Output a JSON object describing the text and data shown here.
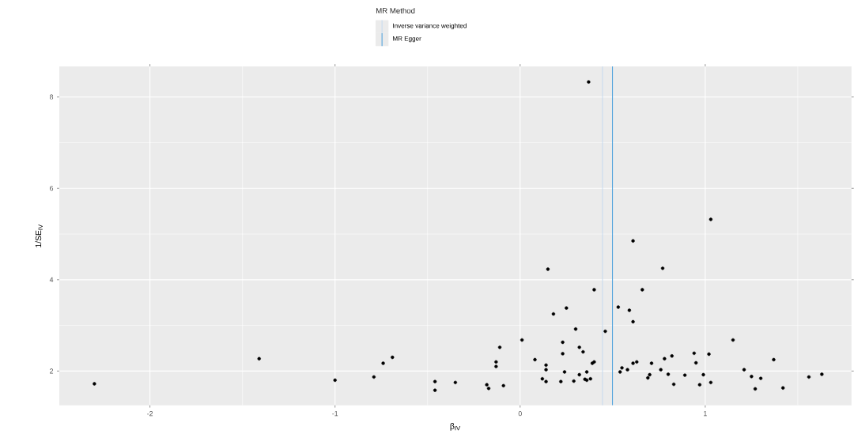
{
  "chart_data": {
    "type": "scatter",
    "xlabel": "β$_{IV}$",
    "ylabel": "1/SE$_{IV}$",
    "legend_title": "MR Method",
    "legend": "top",
    "grid": true,
    "marker": "circle",
    "color": "#000000",
    "xlim": [
      -2.49,
      1.79
    ],
    "ylim": [
      1.25,
      8.67
    ],
    "xticks": [
      -2,
      -1,
      0,
      1
    ],
    "yticks": [
      2,
      4,
      6,
      8
    ],
    "x": [
      -2.3,
      -1.41,
      -1.0,
      -0.79,
      -0.74,
      -0.69,
      -0.46,
      -0.46,
      -0.35,
      -0.18,
      -0.17,
      -0.11,
      -0.13,
      -0.13,
      -0.09,
      0.01,
      0.15,
      0.08,
      0.14,
      0.14,
      0.12,
      0.14,
      0.18,
      0.25,
      0.23,
      0.23,
      0.24,
      0.22,
      0.3,
      0.32,
      0.34,
      0.32,
      0.29,
      0.36,
      0.35,
      0.36,
      0.38,
      0.39,
      0.4,
      0.4,
      0.46,
      0.37,
      0.53,
      0.59,
      0.61,
      0.66,
      0.77,
      0.61,
      1.03,
      0.54,
      0.55,
      0.58,
      0.61,
      0.63,
      0.71,
      0.69,
      0.7,
      0.76,
      0.78,
      0.8,
      0.82,
      0.83,
      0.89,
      0.94,
      0.95,
      0.97,
      0.99,
      1.02,
      1.03,
      1.15,
      1.21,
      1.25,
      1.27,
      1.3,
      1.37,
      1.42,
      1.56,
      1.63
    ],
    "values": [
      1.72,
      2.27,
      1.8,
      1.87,
      2.17,
      2.3,
      1.77,
      1.58,
      1.75,
      1.7,
      1.62,
      2.52,
      2.2,
      2.1,
      1.68,
      2.68,
      4.23,
      2.25,
      2.13,
      2.03,
      1.83,
      1.77,
      3.25,
      3.38,
      2.63,
      2.38,
      1.98,
      1.77,
      2.92,
      2.52,
      2.42,
      1.92,
      1.78,
      1.98,
      1.82,
      1.8,
      1.83,
      2.17,
      2.2,
      3.78,
      2.87,
      8.33,
      3.4,
      3.33,
      3.08,
      3.78,
      4.25,
      4.85,
      5.32,
      1.98,
      2.07,
      2.03,
      2.17,
      2.2,
      2.17,
      1.85,
      1.92,
      2.03,
      2.27,
      1.93,
      2.33,
      1.71,
      1.91,
      2.39,
      2.18,
      1.7,
      1.92,
      2.37,
      1.75,
      2.68,
      2.03,
      1.88,
      1.61,
      1.84,
      2.25,
      1.63,
      1.87,
      1.93
    ],
    "ref_lines": [
      {
        "axis": "x",
        "value": 0.445,
        "label": "Inverse variance weighted",
        "color": "#c6dbef"
      },
      {
        "axis": "x",
        "value": 0.499,
        "label": "MR Egger",
        "color": "#4a9fdc"
      }
    ]
  }
}
